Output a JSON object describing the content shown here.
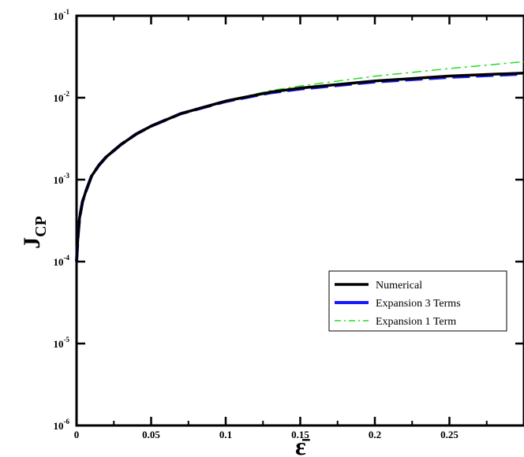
{
  "chart_data": {
    "type": "line",
    "xlabel": "ε̄",
    "ylabel": "J",
    "ylabel_sub": "CP",
    "x_scale": "linear",
    "y_scale": "log",
    "xlim": [
      0,
      0.3
    ],
    "ylim": [
      1e-06,
      0.1
    ],
    "x_ticks": [
      0,
      0.05,
      0.1,
      0.15,
      0.2,
      0.25
    ],
    "x_tick_labels": [
      "0",
      "0.05",
      "0.1",
      "0.15",
      "0.2",
      "0.25"
    ],
    "y_ticks": [
      1e-06,
      1e-05,
      0.0001,
      0.001,
      0.01,
      0.1
    ],
    "y_tick_labels": [
      {
        "base": "10",
        "exp": "-6"
      },
      {
        "base": "10",
        "exp": "-5"
      },
      {
        "base": "10",
        "exp": "-4"
      },
      {
        "base": "10",
        "exp": "-3"
      },
      {
        "base": "10",
        "exp": "-2"
      },
      {
        "base": "10",
        "exp": "-1"
      }
    ],
    "grid": false,
    "legend_position": "lower-right",
    "series": [
      {
        "name": "Numerical",
        "color": "#000000",
        "style": "solid",
        "x": [
          0,
          0.001,
          0.002,
          0.004,
          0.006,
          0.01,
          0.015,
          0.02,
          0.03,
          0.04,
          0.05,
          0.07,
          0.1,
          0.13,
          0.15,
          0.2,
          0.25,
          0.3
        ],
        "y": [
          0.0001,
          0.00021,
          0.00034,
          0.00054,
          0.0007,
          0.0011,
          0.0015,
          0.0019,
          0.0027,
          0.0036,
          0.0045,
          0.0064,
          0.0091,
          0.0117,
          0.0131,
          0.016,
          0.0184,
          0.02
        ]
      },
      {
        "name": "Expansion 3 Terms",
        "color": "#1a1aff",
        "style": "dashed",
        "x": [
          0,
          0.001,
          0.002,
          0.004,
          0.006,
          0.01,
          0.015,
          0.02,
          0.03,
          0.04,
          0.05,
          0.07,
          0.1,
          0.13,
          0.15,
          0.2,
          0.25,
          0.3
        ],
        "y": [
          0.0001,
          0.00021,
          0.00034,
          0.00054,
          0.0007,
          0.0011,
          0.0015,
          0.0019,
          0.0027,
          0.0036,
          0.0045,
          0.0064,
          0.009,
          0.0115,
          0.0128,
          0.0156,
          0.0178,
          0.0195
        ]
      },
      {
        "name": "Expansion 1 Term",
        "color": "#22dd22",
        "style": "dashdot",
        "x": [
          0,
          0.001,
          0.002,
          0.004,
          0.006,
          0.01,
          0.015,
          0.02,
          0.03,
          0.04,
          0.05,
          0.07,
          0.1,
          0.13,
          0.15,
          0.2,
          0.25,
          0.3
        ],
        "y": [
          0.0001,
          0.00021,
          0.00034,
          0.00054,
          0.0007,
          0.0011,
          0.0015,
          0.0019,
          0.0027,
          0.0036,
          0.0045,
          0.0064,
          0.0092,
          0.0122,
          0.0139,
          0.0183,
          0.0227,
          0.0275
        ]
      }
    ]
  }
}
